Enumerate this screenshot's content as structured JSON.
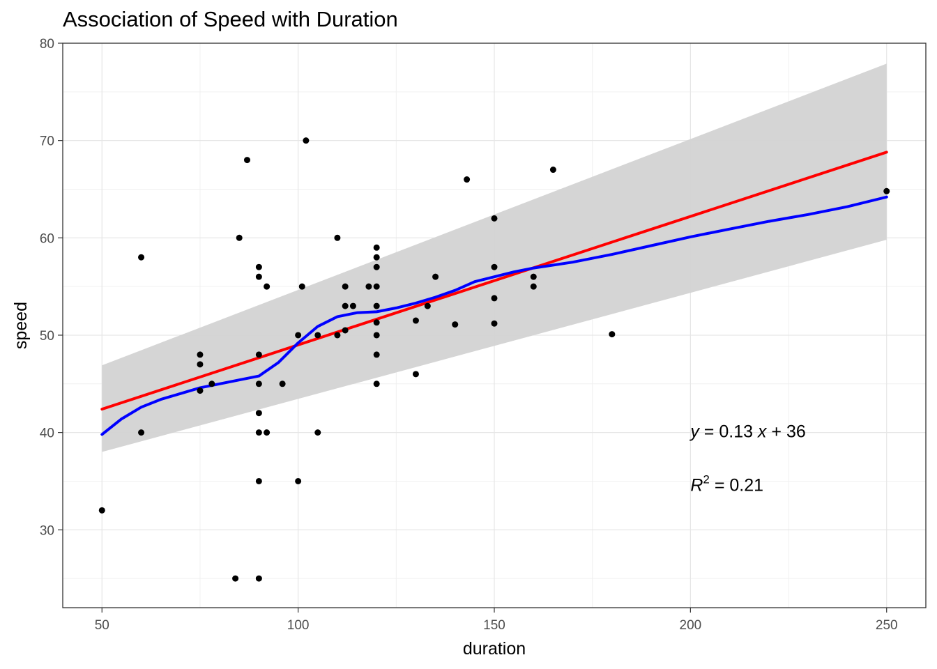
{
  "chart_data": {
    "type": "scatter",
    "title": "Association of Speed with Duration",
    "xlabel": "duration",
    "ylabel": "speed",
    "xlim": [
      40,
      260
    ],
    "ylim": [
      22,
      80
    ],
    "x_ticks": [
      50,
      100,
      150,
      200,
      250
    ],
    "y_ticks": [
      30,
      40,
      50,
      60,
      70,
      80
    ],
    "grid": true,
    "points": [
      [
        50,
        32
      ],
      [
        60,
        58
      ],
      [
        60,
        40
      ],
      [
        75,
        48
      ],
      [
        75,
        47
      ],
      [
        75,
        44.3
      ],
      [
        78,
        45
      ],
      [
        84,
        25
      ],
      [
        85,
        60
      ],
      [
        87,
        68
      ],
      [
        90,
        57
      ],
      [
        90,
        56
      ],
      [
        90,
        48
      ],
      [
        90,
        45
      ],
      [
        90,
        42
      ],
      [
        90,
        40
      ],
      [
        90,
        35
      ],
      [
        90,
        25
      ],
      [
        92,
        55
      ],
      [
        92,
        40
      ],
      [
        96,
        45
      ],
      [
        100,
        50
      ],
      [
        100,
        35
      ],
      [
        101,
        55
      ],
      [
        102,
        70
      ],
      [
        105,
        50
      ],
      [
        105,
        40
      ],
      [
        110,
        60
      ],
      [
        110,
        50
      ],
      [
        112,
        55
      ],
      [
        112,
        53
      ],
      [
        112,
        50.5
      ],
      [
        114,
        53
      ],
      [
        118,
        55
      ],
      [
        120,
        59
      ],
      [
        120,
        58
      ],
      [
        120,
        57
      ],
      [
        120,
        55
      ],
      [
        120,
        53
      ],
      [
        120,
        51.3
      ],
      [
        120,
        50
      ],
      [
        120,
        48
      ],
      [
        120,
        45
      ],
      [
        130,
        51.5
      ],
      [
        130,
        46
      ],
      [
        133,
        53
      ],
      [
        135,
        56
      ],
      [
        140,
        51.1
      ],
      [
        143,
        66
      ],
      [
        150,
        62
      ],
      [
        150,
        57
      ],
      [
        150,
        53.8
      ],
      [
        150,
        51.2
      ],
      [
        160,
        56
      ],
      [
        160,
        55
      ],
      [
        165,
        67
      ],
      [
        180,
        50.1
      ],
      [
        250,
        64.8
      ]
    ],
    "series": [
      {
        "type": "linear-fit",
        "color": "#ff0000",
        "x": [
          50,
          250
        ],
        "y": [
          42.4,
          68.8
        ]
      },
      {
        "type": "loess",
        "color": "#0000ff",
        "x": [
          50,
          55,
          60,
          65,
          70,
          75,
          80,
          85,
          90,
          95,
          100,
          105,
          110,
          115,
          120,
          125,
          130,
          135,
          140,
          145,
          150,
          155,
          160,
          170,
          180,
          190,
          200,
          210,
          220,
          230,
          240,
          250
        ],
        "y": [
          39.8,
          41.4,
          42.6,
          43.4,
          44.0,
          44.6,
          45.0,
          45.4,
          45.8,
          47.2,
          49.2,
          50.9,
          51.9,
          52.3,
          52.4,
          52.8,
          53.3,
          53.9,
          54.6,
          55.5,
          56.0,
          56.5,
          56.9,
          57.5,
          58.3,
          59.2,
          60.1,
          60.9,
          61.7,
          62.4,
          63.2,
          64.2
        ]
      }
    ],
    "confidence_band": {
      "color": "#d3d3d3",
      "x": [
        50,
        250
      ],
      "lower": [
        38.0,
        59.8
      ],
      "upper": [
        46.9,
        77.9
      ]
    },
    "annotations": {
      "equation": {
        "y_var": "y",
        "eq": " = 0.13 ",
        "x_var": "x",
        "plus": " + ",
        "intercept": "36"
      },
      "r2": {
        "r": "R",
        "sup": "2",
        "value": " = 0.21"
      }
    }
  }
}
